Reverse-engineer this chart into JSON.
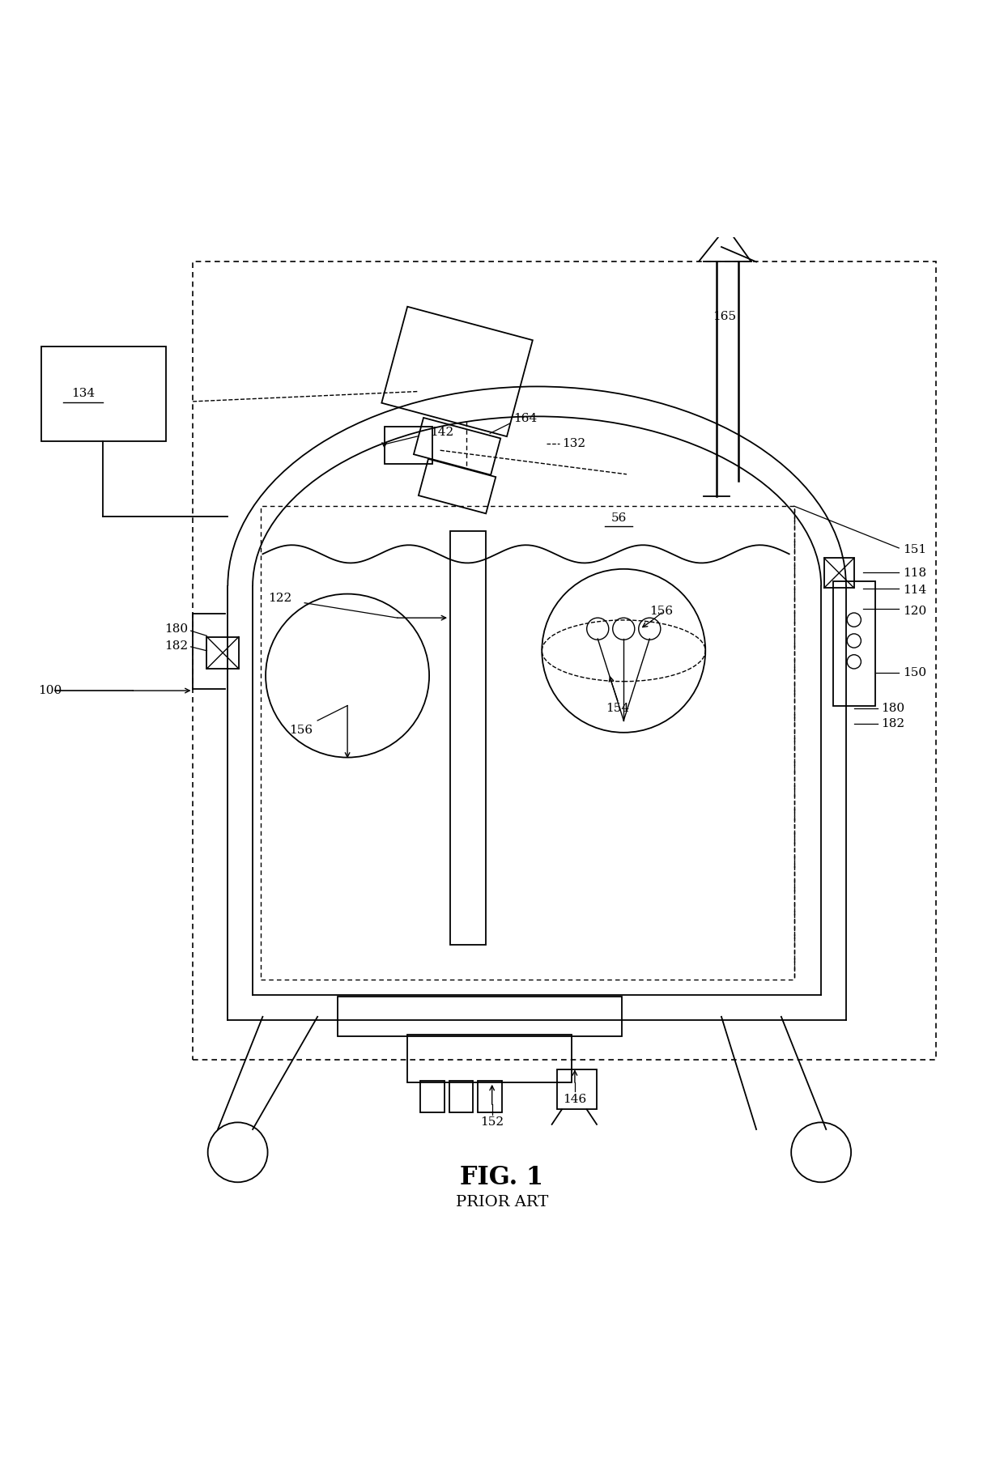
{
  "fig_width": 12.4,
  "fig_height": 18.17,
  "bg_color": "#ffffff",
  "line_color": "#000000",
  "title": "FIG. 1",
  "subtitle": "PRIOR ART",
  "title_fontsize": 22,
  "subtitle_fontsize": 14,
  "label_fontsize": 11
}
